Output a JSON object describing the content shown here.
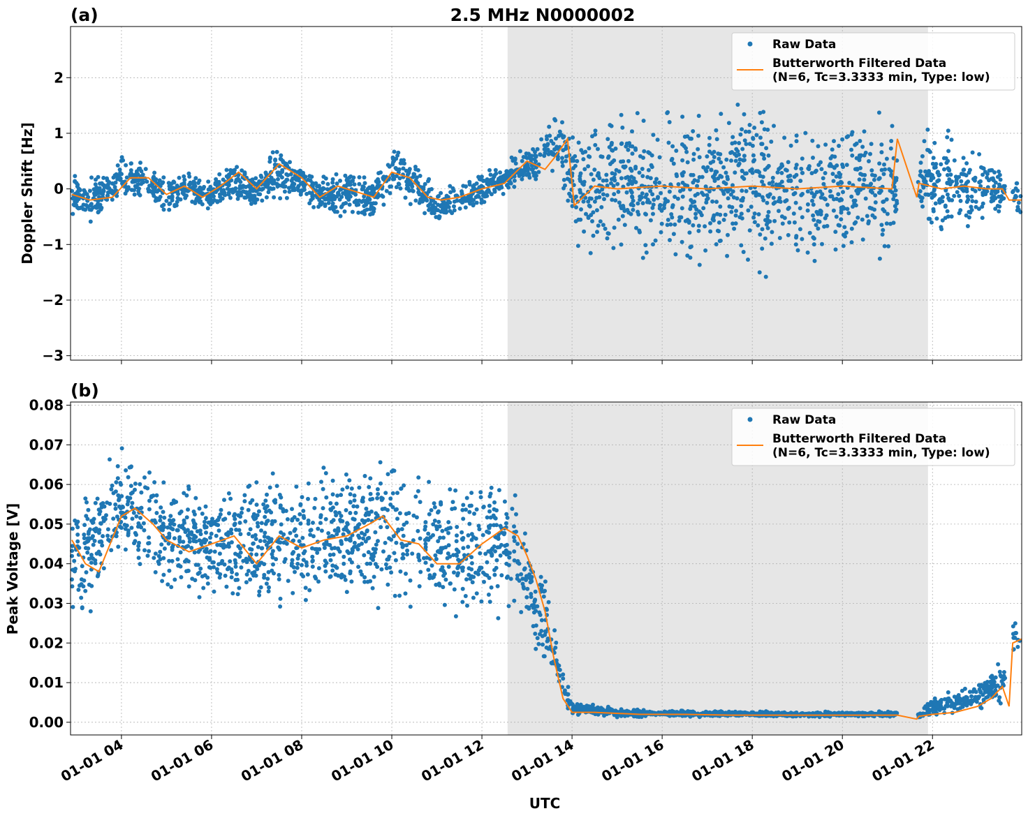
{
  "figure": {
    "title": "2.5 MHz N0000002",
    "xlabel": "UTC"
  },
  "chart_data": [
    {
      "panel_label": "(a)",
      "type": "scatter",
      "ylabel": "Doppler Shift [Hz]",
      "xlim_hours": [
        2.87,
        23.98
      ],
      "ylim": [
        -3.08,
        2.92
      ],
      "yticks": [
        -3,
        -2,
        -1,
        0,
        1,
        2
      ],
      "ytick_labels": [
        "−3",
        "−2",
        "−1",
        "0",
        "1",
        "2"
      ],
      "shaded_region_hours": [
        12.57,
        21.9
      ],
      "grid": true,
      "legend": {
        "placement": "upper right",
        "raw_label": "Raw Data",
        "filtered_label_line1": "Butterworth Filtered Data",
        "filtered_label_line2": "(N=6, Tc=3.3333 min, Type: low)"
      },
      "series": [
        {
          "name": "Raw Data",
          "color": "#1f77b4",
          "style": "points",
          "envelope": [
            {
              "x": 2.9,
              "low": -0.6,
              "high": 0.35
            },
            {
              "x": 3.5,
              "low": -0.65,
              "high": 0.3
            },
            {
              "x": 4.0,
              "low": -0.35,
              "high": 0.65
            },
            {
              "x": 4.5,
              "low": -0.25,
              "high": 0.6
            },
            {
              "x": 5.0,
              "low": -0.5,
              "high": 0.25
            },
            {
              "x": 5.5,
              "low": -0.4,
              "high": 0.4
            },
            {
              "x": 6.0,
              "low": -0.55,
              "high": 0.3
            },
            {
              "x": 6.5,
              "low": -0.3,
              "high": 0.6
            },
            {
              "x": 7.0,
              "low": -0.5,
              "high": 0.4
            },
            {
              "x": 7.5,
              "low": -0.3,
              "high": 0.95
            },
            {
              "x": 8.0,
              "low": -0.35,
              "high": 0.6
            },
            {
              "x": 8.5,
              "low": -0.6,
              "high": 0.3
            },
            {
              "x": 9.0,
              "low": -0.55,
              "high": 0.4
            },
            {
              "x": 9.5,
              "low": -0.65,
              "high": 0.25
            },
            {
              "x": 10.0,
              "low": -0.2,
              "high": 0.85
            },
            {
              "x": 10.5,
              "low": -0.4,
              "high": 0.6
            },
            {
              "x": 11.0,
              "low": -0.75,
              "high": 0.1
            },
            {
              "x": 11.5,
              "low": -0.55,
              "high": 0.2
            },
            {
              "x": 12.0,
              "low": -0.35,
              "high": 0.35
            },
            {
              "x": 12.5,
              "low": -0.15,
              "high": 0.5
            },
            {
              "x": 13.0,
              "low": 0.0,
              "high": 0.85
            },
            {
              "x": 13.5,
              "low": 0.25,
              "high": 1.3
            },
            {
              "x": 13.85,
              "low": -0.3,
              "high": 1.6
            },
            {
              "x": 14.1,
              "low": -1.3,
              "high": 1.3
            },
            {
              "x": 15.0,
              "low": -1.5,
              "high": 1.6
            },
            {
              "x": 16.0,
              "low": -1.6,
              "high": 1.7
            },
            {
              "x": 17.0,
              "low": -1.6,
              "high": 1.7
            },
            {
              "x": 18.0,
              "low": -1.7,
              "high": 1.8
            },
            {
              "x": 19.0,
              "low": -1.6,
              "high": 1.6
            },
            {
              "x": 20.0,
              "low": -1.6,
              "high": 1.6
            },
            {
              "x": 21.1,
              "low": -1.4,
              "high": 1.4
            },
            {
              "x": 21.7,
              "low": -1.1,
              "high": 1.3
            },
            {
              "x": 22.5,
              "low": -1.0,
              "high": 1.2
            },
            {
              "x": 23.3,
              "low": -0.8,
              "high": 0.8
            },
            {
              "x": 23.6,
              "low": -0.5,
              "high": 0.4
            },
            {
              "x": 23.95,
              "low": -0.5,
              "high": 0.1
            }
          ],
          "gaps_hours": [
            [
              21.22,
              21.68
            ],
            [
              23.62,
              23.78
            ]
          ]
        },
        {
          "name": "Butterworth Filtered Data (N=6, Tc=3.3333 min, Type: low)",
          "color": "#ff7f0e",
          "style": "line",
          "x": [
            2.9,
            3.3,
            3.8,
            4.2,
            4.6,
            5.0,
            5.4,
            5.8,
            6.2,
            6.6,
            7.0,
            7.5,
            8.0,
            8.4,
            8.8,
            9.2,
            9.6,
            10.0,
            10.4,
            10.8,
            11.1,
            11.5,
            12.0,
            12.5,
            13.0,
            13.4,
            13.6,
            13.9,
            14.05,
            14.5,
            15.0,
            16.0,
            17.0,
            18.0,
            19.0,
            20.0,
            21.1,
            21.22,
            21.65,
            21.7,
            22.2,
            22.7,
            23.2,
            23.55,
            23.7,
            23.98
          ],
          "y": [
            -0.1,
            -0.2,
            -0.15,
            0.2,
            0.2,
            -0.1,
            0.05,
            -0.15,
            0.05,
            0.3,
            0.0,
            0.45,
            0.2,
            -0.15,
            0.05,
            -0.05,
            -0.15,
            0.3,
            0.2,
            -0.15,
            -0.2,
            -0.15,
            0.0,
            0.1,
            0.5,
            0.35,
            0.55,
            0.9,
            -0.3,
            0.05,
            0.0,
            0.05,
            0.0,
            0.05,
            0.0,
            0.05,
            0.0,
            0.9,
            -0.15,
            0.1,
            0.0,
            0.05,
            0.0,
            0.0,
            -0.2,
            -0.2
          ]
        }
      ]
    },
    {
      "panel_label": "(b)",
      "type": "scatter",
      "ylabel": "Peak Voltage [V]",
      "xlim_hours": [
        2.87,
        23.98
      ],
      "ylim": [
        -0.0032,
        0.0808
      ],
      "yticks": [
        0.0,
        0.01,
        0.02,
        0.03,
        0.04,
        0.05,
        0.06,
        0.07,
        0.08
      ],
      "ytick_labels": [
        "0.00",
        "0.01",
        "0.02",
        "0.03",
        "0.04",
        "0.05",
        "0.06",
        "0.07",
        "0.08"
      ],
      "xticks_hours": [
        4,
        6,
        8,
        10,
        12,
        14,
        16,
        18,
        20,
        22
      ],
      "xtick_labels": [
        "01-01 04",
        "01-01 06",
        "01-01 08",
        "01-01 10",
        "01-01 12",
        "01-01 14",
        "01-01 16",
        "01-01 18",
        "01-01 20",
        "01-01 22"
      ],
      "shaded_region_hours": [
        12.57,
        21.9
      ],
      "grid": true,
      "legend": {
        "placement": "upper right",
        "raw_label": "Raw Data",
        "filtered_label_line1": "Butterworth Filtered Data",
        "filtered_label_line2": "(N=6, Tc=3.3333 min, Type: low)"
      },
      "series": [
        {
          "name": "Raw Data",
          "color": "#1f77b4",
          "style": "points",
          "envelope": [
            {
              "x": 2.9,
              "low": 0.022,
              "high": 0.058
            },
            {
              "x": 3.3,
              "low": 0.026,
              "high": 0.062
            },
            {
              "x": 4.0,
              "low": 0.036,
              "high": 0.072
            },
            {
              "x": 4.5,
              "low": 0.033,
              "high": 0.07
            },
            {
              "x": 5.0,
              "low": 0.028,
              "high": 0.064
            },
            {
              "x": 6.0,
              "low": 0.027,
              "high": 0.065
            },
            {
              "x": 7.0,
              "low": 0.024,
              "high": 0.068
            },
            {
              "x": 8.0,
              "low": 0.025,
              "high": 0.068
            },
            {
              "x": 9.0,
              "low": 0.026,
              "high": 0.069
            },
            {
              "x": 9.8,
              "low": 0.028,
              "high": 0.072
            },
            {
              "x": 10.5,
              "low": 0.025,
              "high": 0.066
            },
            {
              "x": 11.5,
              "low": 0.022,
              "high": 0.064
            },
            {
              "x": 12.0,
              "low": 0.024,
              "high": 0.068
            },
            {
              "x": 12.7,
              "low": 0.024,
              "high": 0.066
            },
            {
              "x": 13.0,
              "low": 0.02,
              "high": 0.05
            },
            {
              "x": 13.4,
              "low": 0.012,
              "high": 0.038
            },
            {
              "x": 13.7,
              "low": 0.004,
              "high": 0.02
            },
            {
              "x": 14.0,
              "low": 0.0015,
              "high": 0.006
            },
            {
              "x": 15.0,
              "low": 0.0012,
              "high": 0.0035
            },
            {
              "x": 17.0,
              "low": 0.0012,
              "high": 0.003
            },
            {
              "x": 19.0,
              "low": 0.0012,
              "high": 0.0028
            },
            {
              "x": 21.1,
              "low": 0.0012,
              "high": 0.0028
            },
            {
              "x": 21.7,
              "low": 0.0008,
              "high": 0.003
            },
            {
              "x": 22.0,
              "low": 0.001,
              "high": 0.006
            },
            {
              "x": 22.5,
              "low": 0.001,
              "high": 0.009
            },
            {
              "x": 23.0,
              "low": 0.002,
              "high": 0.012
            },
            {
              "x": 23.4,
              "low": 0.003,
              "high": 0.016
            },
            {
              "x": 23.62,
              "low": 0.003,
              "high": 0.016
            },
            {
              "x": 23.8,
              "low": 0.014,
              "high": 0.028
            },
            {
              "x": 23.98,
              "low": 0.015,
              "high": 0.034
            }
          ],
          "gaps_hours": [
            [
              21.22,
              21.68
            ],
            [
              23.62,
              23.78
            ]
          ]
        },
        {
          "name": "Butterworth Filtered Data (N=6, Tc=3.3333 min, Type: low)",
          "color": "#ff7f0e",
          "style": "line",
          "x": [
            2.9,
            3.2,
            3.5,
            4.0,
            4.3,
            4.7,
            5.0,
            5.5,
            6.0,
            6.5,
            7.0,
            7.5,
            8.0,
            8.5,
            9.0,
            9.5,
            9.8,
            10.2,
            10.6,
            11.0,
            11.5,
            12.0,
            12.5,
            12.8,
            13.0,
            13.2,
            13.4,
            13.6,
            13.8,
            14.0,
            14.5,
            15.5,
            16.5,
            17.5,
            18.5,
            19.5,
            20.5,
            21.1,
            21.22,
            21.65,
            21.7,
            22.0,
            22.5,
            23.0,
            23.3,
            23.55,
            23.7,
            23.78,
            23.98
          ],
          "y": [
            0.046,
            0.04,
            0.038,
            0.052,
            0.054,
            0.05,
            0.046,
            0.043,
            0.045,
            0.047,
            0.04,
            0.047,
            0.044,
            0.046,
            0.047,
            0.05,
            0.052,
            0.046,
            0.045,
            0.04,
            0.04,
            0.045,
            0.049,
            0.047,
            0.042,
            0.036,
            0.028,
            0.016,
            0.006,
            0.0025,
            0.0025,
            0.002,
            0.002,
            0.0018,
            0.0018,
            0.0018,
            0.0018,
            0.0018,
            0.0018,
            0.0008,
            0.0015,
            0.002,
            0.0025,
            0.004,
            0.006,
            0.009,
            0.004,
            0.02,
            0.021
          ]
        }
      ]
    }
  ]
}
